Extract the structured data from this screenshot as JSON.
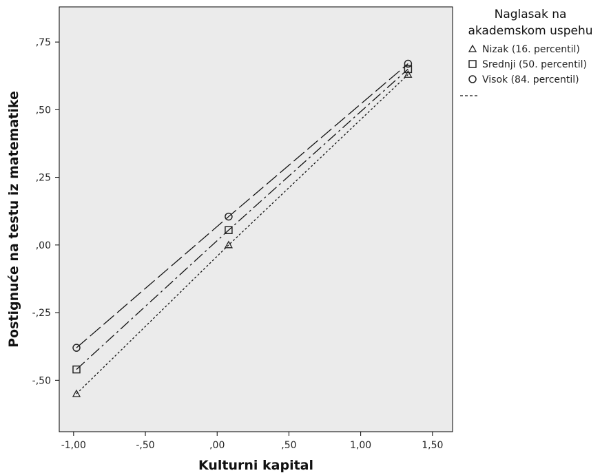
{
  "chart_data": {
    "type": "line",
    "title": "",
    "xlabel": "Kulturni kapital",
    "ylabel": "Postignuće na testu iz matematike",
    "xlim": [
      -1.1,
      1.64
    ],
    "ylim": [
      -0.69,
      0.88
    ],
    "x_ticks": [
      {
        "value": -1.0,
        "label": "-1,00"
      },
      {
        "value": -0.5,
        "label": "-,50"
      },
      {
        "value": 0.0,
        "label": ",00"
      },
      {
        "value": 0.5,
        "label": ",50"
      },
      {
        "value": 1.0,
        "label": "1,00"
      },
      {
        "value": 1.5,
        "label": "1,50"
      }
    ],
    "y_ticks": [
      {
        "value": -0.5,
        "label": "-,50"
      },
      {
        "value": -0.25,
        "label": "-,25"
      },
      {
        "value": 0.0,
        "label": ",00"
      },
      {
        "value": 0.25,
        "label": ",25"
      },
      {
        "value": 0.5,
        "label": ",50"
      },
      {
        "value": 0.75,
        "label": ",75"
      }
    ],
    "grid": false,
    "plot_background": "#ebebeb",
    "legend": {
      "placement": "right",
      "title_lines": [
        "Naglasak na",
        "akademskom uspehu"
      ]
    },
    "series": [
      {
        "name": "Nizak (16. percentil)",
        "marker": "triangle",
        "dash": "short",
        "x": [
          -0.98,
          0.08,
          1.33
        ],
        "y": [
          -0.55,
          0.0,
          0.63
        ]
      },
      {
        "name": "Srednji (50. percentil)",
        "marker": "square",
        "dash": "dash-dot",
        "x": [
          -0.98,
          0.08,
          1.33
        ],
        "y": [
          -0.46,
          0.055,
          0.65
        ]
      },
      {
        "name": "Visok (84. percentil)",
        "marker": "circle",
        "dash": "long",
        "x": [
          -0.98,
          0.08,
          1.33
        ],
        "y": [
          -0.38,
          0.105,
          0.67
        ]
      }
    ]
  }
}
